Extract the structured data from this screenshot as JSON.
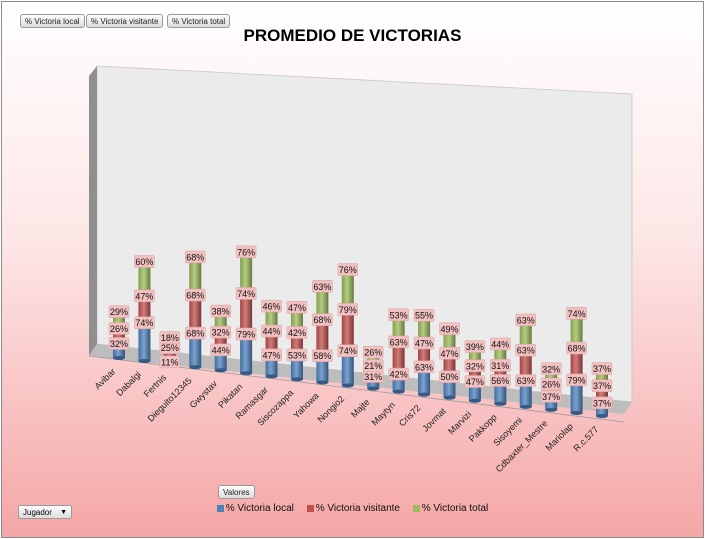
{
  "filter_buttons": [
    "% Victoria local",
    "% Victoria visitante",
    "% Victoria total"
  ],
  "values_button": "Valores",
  "axis_filter": {
    "label": "Jugador"
  },
  "chart_data": {
    "type": "bar",
    "stacked": true,
    "three_d": true,
    "title": "PROMEDIO DE VICTORIAS",
    "categories": [
      "Avibar",
      "Dabalgi",
      "Fertnis",
      "Dieguito12345",
      "Gwystav",
      "Pikatan",
      "Ramasgar",
      "Siscozappa",
      "Yahowa",
      "Nongio2",
      "Majte",
      "Maytyn",
      "Cris72",
      "Jovmat",
      "Marvizi",
      "Pakkopp",
      "Sisoyemi",
      "Cdbaxter_Mestre",
      "Mariolap",
      "R.c.577"
    ],
    "series": [
      {
        "name": "% Victoria local",
        "color": "#4f81bd",
        "values": [
          32,
          74,
          11,
          68,
          44,
          79,
          47,
          53,
          58,
          74,
          31,
          42,
          63,
          50,
          47,
          56,
          63,
          37,
          79,
          37
        ]
      },
      {
        "name": "% Victoria visitante",
        "color": "#c0504d",
        "values": [
          26,
          47,
          25,
          68,
          32,
          74,
          44,
          42,
          68,
          79,
          21,
          63,
          47,
          47,
          32,
          31,
          63,
          26,
          68,
          37
        ]
      },
      {
        "name": "% Victoria total",
        "color": "#9bbb59",
        "values": [
          29,
          60,
          18,
          68,
          38,
          76,
          46,
          47,
          63,
          76,
          26,
          53,
          55,
          49,
          39,
          44,
          63,
          32,
          74,
          37
        ]
      }
    ],
    "label_suffix": "%",
    "grid": false,
    "legend_position": "bottom"
  }
}
